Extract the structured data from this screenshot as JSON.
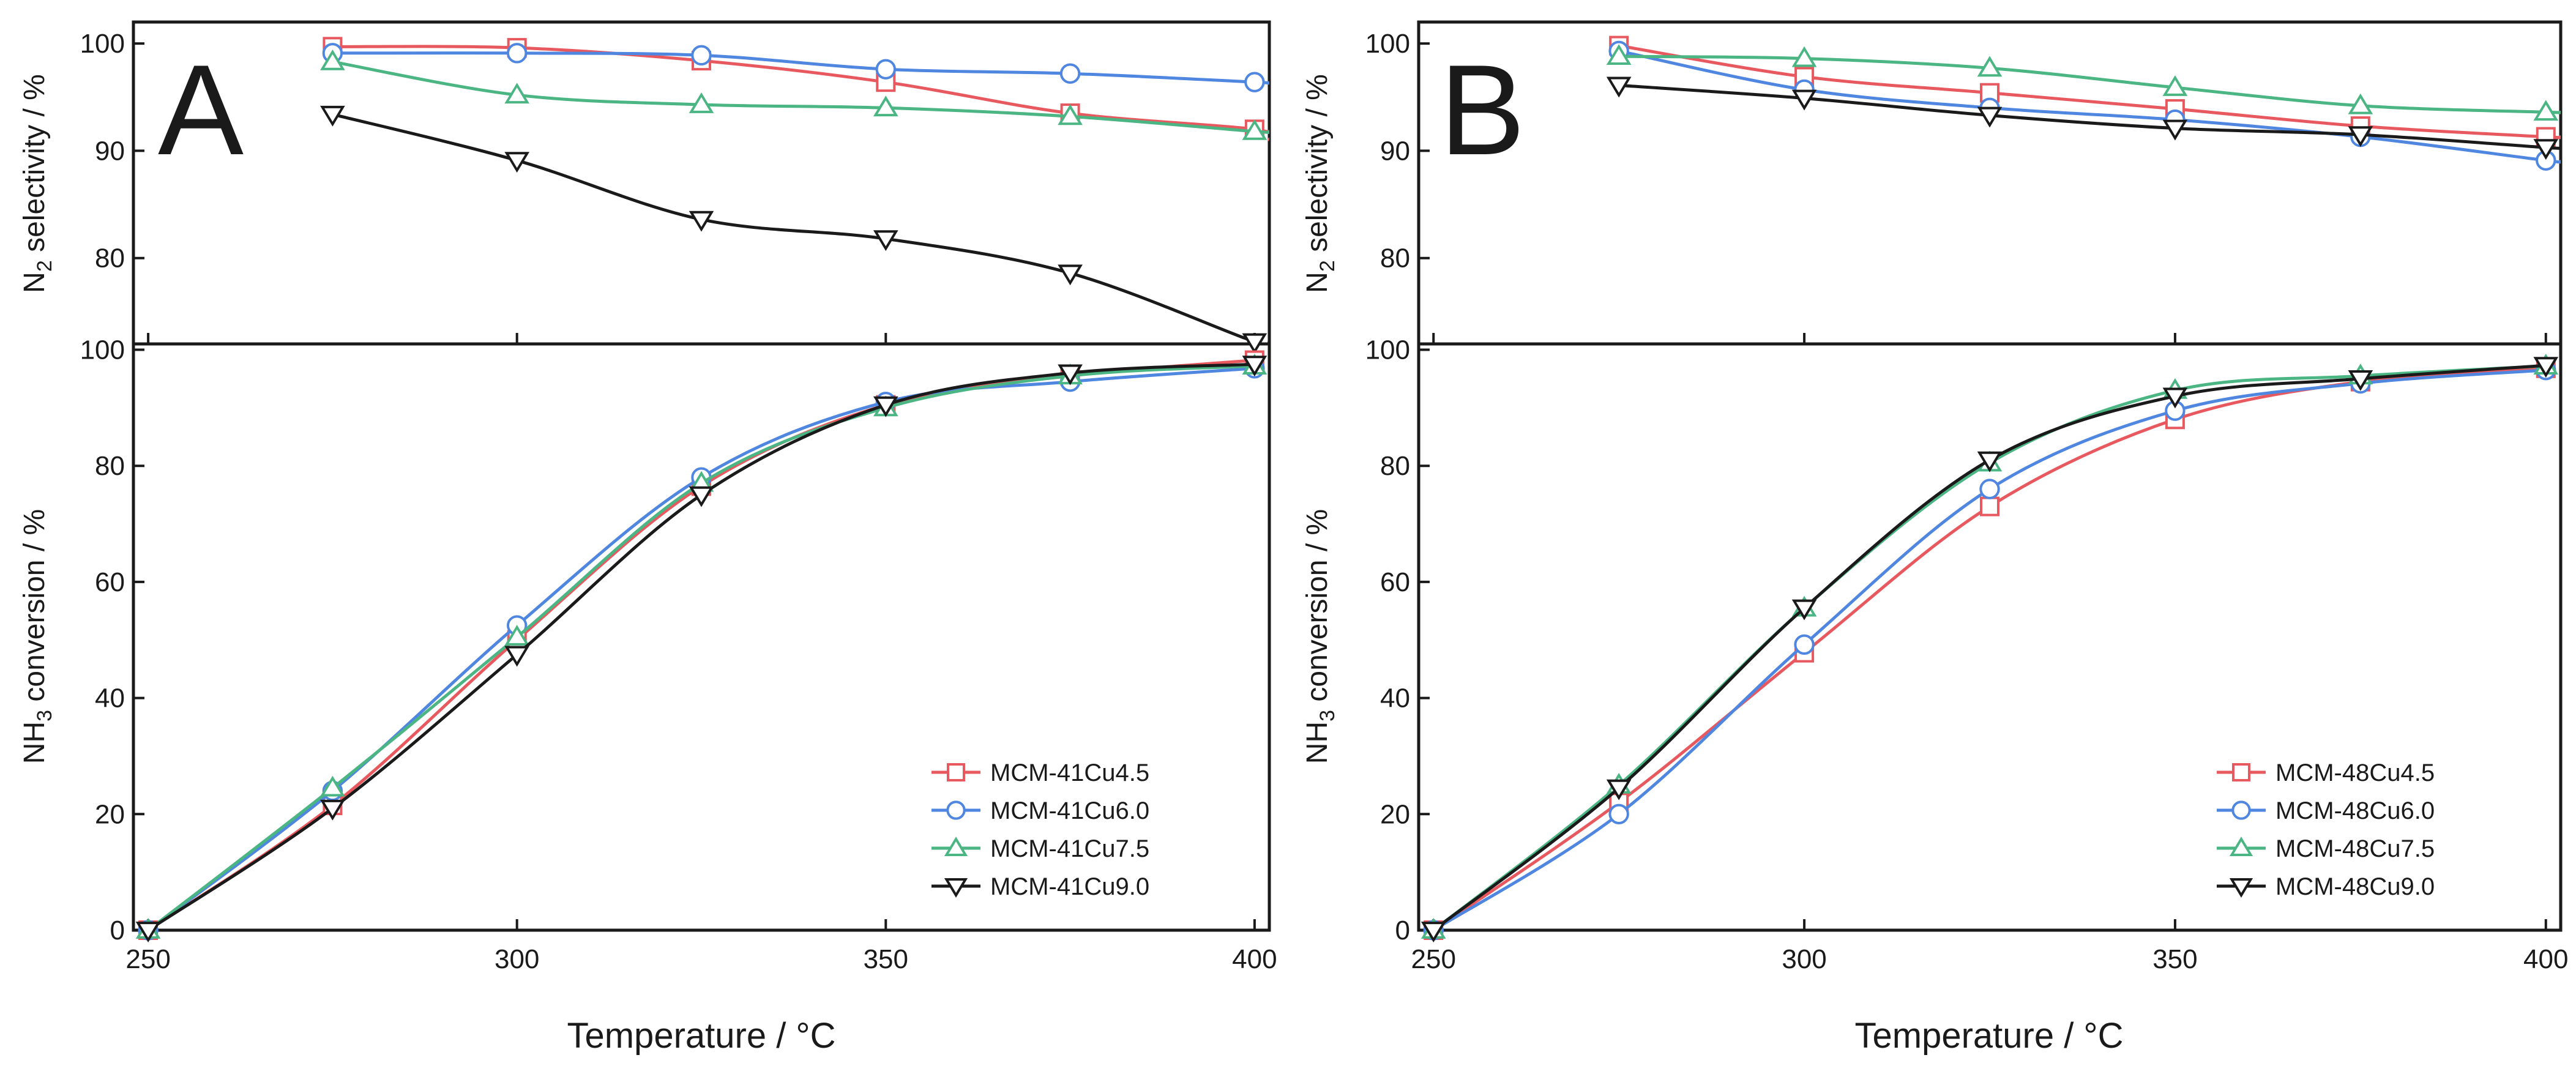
{
  "figure": {
    "xlabel": "Temperature / °C",
    "ylabel_top_main": "N",
    "ylabel_top_sub": "2",
    "ylabel_top_rest": " selectivity / %",
    "ylabel_bottom_main": "NH",
    "ylabel_bottom_sub": "3",
    "ylabel_bottom_rest": " conversion / %"
  },
  "chart_data": [
    {
      "panel": "A",
      "type": "line",
      "subplot": "top",
      "ylabel": "N2 selectivity / %",
      "xlim": [
        248,
        402
      ],
      "ylim": [
        72,
        102
      ],
      "xticks": [
        250,
        300,
        350,
        400
      ],
      "yticks": [
        80,
        90,
        100
      ],
      "x": [
        275,
        300,
        325,
        350,
        375,
        400
      ],
      "series": [
        {
          "name": "MCM-41Cu4.5",
          "color": "#e8595f",
          "marker": "square",
          "values": [
            99.7,
            99.6,
            98.4,
            96.4,
            93.5,
            92.0
          ],
          "curve_end": 91.0
        },
        {
          "name": "MCM-41Cu6.0",
          "color": "#4f86e0",
          "marker": "circle",
          "values": [
            99.1,
            99.1,
            98.9,
            97.6,
            97.2,
            96.4
          ],
          "curve_end": 96.3
        },
        {
          "name": "MCM-41Cu7.5",
          "color": "#4bb584",
          "marker": "triangle-up",
          "values": [
            98.3,
            95.2,
            94.3,
            94.0,
            93.2,
            91.8
          ],
          "curve_end": 91.8
        },
        {
          "name": "MCM-41Cu9.0",
          "color": "#1a1a1a",
          "marker": "triangle-down",
          "values": [
            93.4,
            89.1,
            83.6,
            81.8,
            78.6,
            72.2
          ],
          "curve_end": 72.2
        }
      ]
    },
    {
      "panel": "A",
      "type": "line",
      "subplot": "bottom",
      "ylabel": "NH3 conversion / %",
      "xlabel": "Temperature / °C",
      "xlim": [
        248,
        402
      ],
      "ylim": [
        0,
        101
      ],
      "xticks": [
        250,
        300,
        350,
        400
      ],
      "yticks": [
        0,
        20,
        40,
        60,
        80,
        100
      ],
      "x": [
        250,
        275,
        300,
        325,
        350,
        375,
        400
      ],
      "legend": "bottom-right",
      "series": [
        {
          "name": "MCM-41Cu4.5",
          "color": "#e8595f",
          "marker": "square",
          "values": [
            0,
            21.5,
            50.0,
            76.5,
            90.5,
            95.5,
            98.2
          ]
        },
        {
          "name": "MCM-41Cu6.0",
          "color": "#4f86e0",
          "marker": "circle",
          "values": [
            0,
            24.0,
            52.5,
            78.0,
            91.0,
            94.5,
            96.8
          ]
        },
        {
          "name": "MCM-41Cu7.5",
          "color": "#4bb584",
          "marker": "triangle-up",
          "values": [
            0,
            24.5,
            50.5,
            77.0,
            90.0,
            95.5,
            97.2
          ]
        },
        {
          "name": "MCM-41Cu9.0",
          "color": "#1a1a1a",
          "marker": "triangle-down",
          "values": [
            0,
            21.0,
            47.5,
            75.0,
            90.5,
            96.0,
            97.5
          ]
        }
      ]
    },
    {
      "panel": "B",
      "type": "line",
      "subplot": "top",
      "ylabel": "N2 selectivity / %",
      "xlim": [
        248,
        402
      ],
      "ylim": [
        72,
        102
      ],
      "xticks": [
        250,
        300,
        350,
        400
      ],
      "yticks": [
        80,
        90,
        100
      ],
      "x": [
        275,
        300,
        325,
        350,
        375,
        400
      ],
      "series": [
        {
          "name": "MCM-48Cu4.5",
          "color": "#e8595f",
          "marker": "square",
          "values": [
            99.8,
            96.9,
            95.4,
            93.9,
            92.3,
            91.3
          ],
          "curve_end": 91.3
        },
        {
          "name": "MCM-48Cu6.0",
          "color": "#4f86e0",
          "marker": "circle",
          "values": [
            99.3,
            95.7,
            94.0,
            92.9,
            91.3,
            89.1
          ],
          "curve_end": 89.0
        },
        {
          "name": "MCM-48Cu7.5",
          "color": "#4bb584",
          "marker": "triangle-up",
          "values": [
            98.8,
            98.6,
            97.7,
            95.9,
            94.2,
            93.6
          ],
          "curve_end": 93.6
        },
        {
          "name": "MCM-48Cu9.0",
          "color": "#1a1a1a",
          "marker": "triangle-down",
          "values": [
            96.1,
            94.9,
            93.3,
            92.1,
            91.5,
            90.3
          ],
          "curve_end": 90.3
        }
      ]
    },
    {
      "panel": "B",
      "type": "line",
      "subplot": "bottom",
      "ylabel": "NH3 conversion / %",
      "xlabel": "Temperature / °C",
      "xlim": [
        248,
        402
      ],
      "ylim": [
        0,
        101
      ],
      "xticks": [
        250,
        300,
        350,
        400
      ],
      "yticks": [
        0,
        20,
        40,
        60,
        80,
        100
      ],
      "x": [
        250,
        275,
        300,
        325,
        350,
        375,
        400
      ],
      "legend": "bottom-right",
      "series": [
        {
          "name": "MCM-48Cu4.5",
          "color": "#e8595f",
          "marker": "square",
          "values": [
            0,
            22.0,
            47.8,
            73.0,
            88.0,
            94.5,
            96.8
          ]
        },
        {
          "name": "MCM-48Cu6.0",
          "color": "#4f86e0",
          "marker": "circle",
          "values": [
            0,
            20.0,
            49.2,
            76.0,
            89.5,
            94.2,
            96.5
          ]
        },
        {
          "name": "MCM-48Cu7.5",
          "color": "#4bb584",
          "marker": "triangle-up",
          "values": [
            0,
            25.0,
            55.5,
            80.5,
            93.0,
            95.5,
            97.2
          ]
        },
        {
          "name": "MCM-48Cu9.0",
          "color": "#1a1a1a",
          "marker": "triangle-down",
          "values": [
            0,
            24.5,
            55.5,
            81.0,
            92.0,
            95.0,
            97.3
          ]
        }
      ]
    }
  ]
}
